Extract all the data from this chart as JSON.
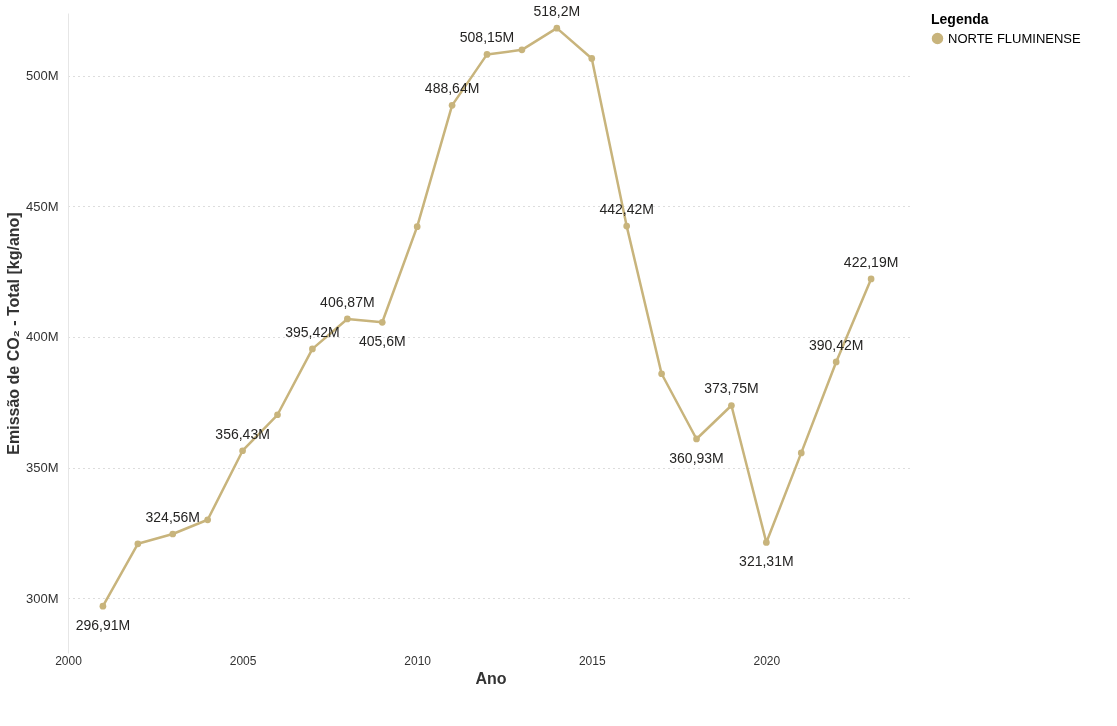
{
  "chart_data": {
    "type": "line",
    "xlabel": "Ano",
    "ylabel": "Emissão de CO₂ - Total [kg/ano]",
    "legend_title": "Legenda",
    "legend": "top right",
    "grid": "y",
    "marker": "circle",
    "line_style": "solid",
    "x": [
      2001,
      2002,
      2003,
      2004,
      2005,
      2006,
      2007,
      2008,
      2009,
      2010,
      2011,
      2012,
      2013,
      2014,
      2015,
      2016,
      2017,
      2018,
      2019,
      2020,
      2021,
      2022,
      2023
    ],
    "xlim": [
      2000,
      2024.2
    ],
    "xticks": [
      2000,
      2005,
      2010,
      2015,
      2020
    ],
    "ylim": [
      279,
      524
    ],
    "yticks": [
      {
        "value": 300,
        "label": "300M"
      },
      {
        "value": 350,
        "label": "350M"
      },
      {
        "value": 400,
        "label": "400M"
      },
      {
        "value": 450,
        "label": "450M"
      },
      {
        "value": 500,
        "label": "500M"
      }
    ],
    "series": [
      {
        "name": "NORTE FLUMINENSE",
        "color": "#c8b47c",
        "values": [
          296.91,
          320.8,
          324.56,
          330.0,
          356.43,
          370.2,
          395.42,
          406.87,
          405.6,
          442.2,
          488.64,
          508.15,
          509.9,
          518.2,
          506.6,
          442.42,
          385.9,
          360.93,
          373.75,
          321.31,
          355.6,
          390.42,
          422.19
        ],
        "value_labels": [
          "296,91M",
          null,
          "324,56M",
          null,
          "356,43M",
          null,
          "395,42M",
          "406,87M",
          "405,6M",
          null,
          "488,64M",
          "508,15M",
          null,
          "518,2M",
          null,
          "442,42M",
          null,
          "360,93M",
          "373,75M",
          "321,31M",
          null,
          "390,42M",
          "422,19M"
        ]
      }
    ]
  }
}
